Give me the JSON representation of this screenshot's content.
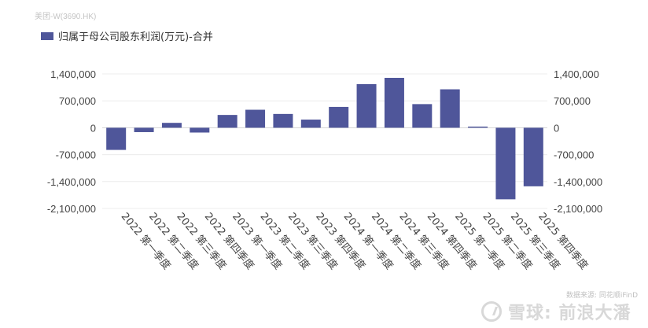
{
  "header": {
    "stock_label": "美团-W(3690.HK)"
  },
  "chart_data": {
    "type": "bar",
    "legend": [
      "归属于母公司股东利润(万元)-合并"
    ],
    "series": [
      {
        "name": "归属于母公司股东利润(万元)-合并",
        "color": "#4f569a",
        "values": [
          -577000,
          -114000,
          127000,
          -125000,
          333000,
          468000,
          359000,
          212000,
          542000,
          1134000,
          1298000,
          615000,
          1000000,
          30000,
          -1862000,
          -1524000
        ]
      }
    ],
    "categories": [
      "2022 第一季度",
      "2022 第二季度",
      "2022 第三季度",
      "2022 第四季度",
      "2023 第一季度",
      "2023 第二季度",
      "2023 第三季度",
      "2023 第四季度",
      "2024 第一季度",
      "2024 第二季度",
      "2024 第三季度",
      "2024 第四季度",
      "2025 第一季度",
      "2025 第二季度",
      "2025 第三季度",
      "2025 第四季度"
    ],
    "y_ticks": [
      1400000,
      700000,
      0,
      -700000,
      -1400000,
      -2100000
    ],
    "y_tick_labels": [
      "1,400,000",
      "700,000",
      "0",
      "-700,000",
      "-1,400,000",
      "-2,100,000"
    ],
    "ylim": [
      -2100000,
      1400000
    ],
    "grid": true,
    "legend_position": "top-left",
    "dual_axis_mirrored": true
  },
  "footer": {
    "source": "数据来源: 同花顺iFinD",
    "brand": "雪球: 前浪大潘"
  }
}
